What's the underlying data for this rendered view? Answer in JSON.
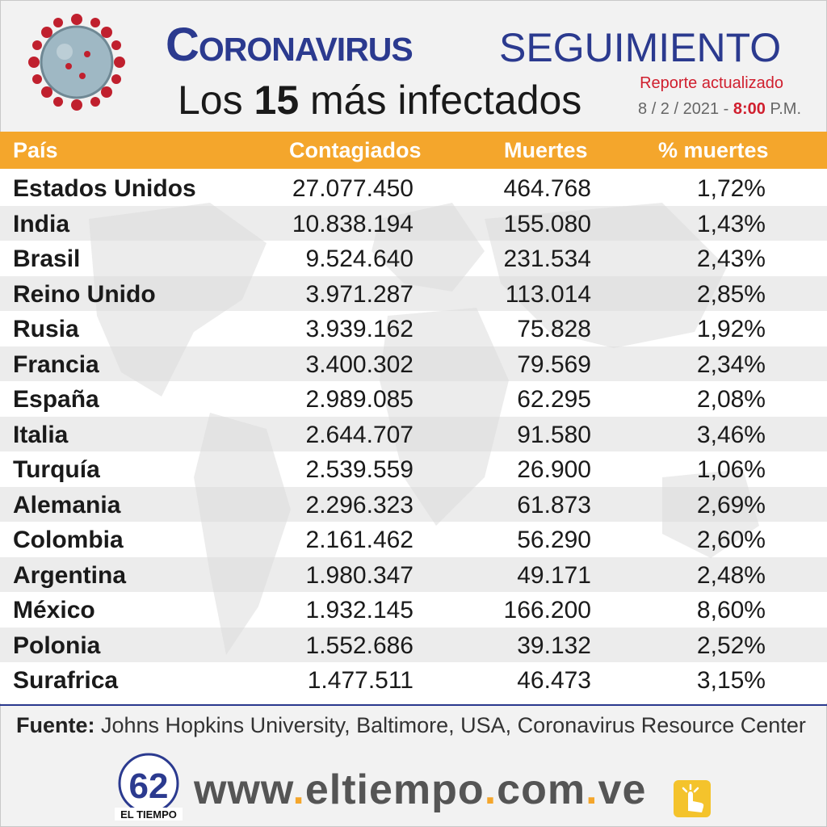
{
  "header": {
    "title_main": "Coronavirus",
    "title_sub": "SEGUIMIENTO",
    "subtitle_pre": "Los ",
    "subtitle_num": "15",
    "subtitle_post": " más infectados",
    "report_label": "Reporte actualizado",
    "report_date": "8 / 2 / 2021 - ",
    "report_time": "8:00",
    "report_ampm": " P.M."
  },
  "table": {
    "headers": [
      "País",
      "Contagiados",
      "Muertes",
      "% muertes"
    ],
    "rows": [
      {
        "pais": "Estados Unidos",
        "contagiados": "27.077.450",
        "muertes": "464.768",
        "pct": "1,72%"
      },
      {
        "pais": "India",
        "contagiados": "10.838.194",
        "muertes": "155.080",
        "pct": "1,43%"
      },
      {
        "pais": "Brasil",
        "contagiados": "9.524.640",
        "muertes": "231.534",
        "pct": "2,43%"
      },
      {
        "pais": "Reino Unido",
        "contagiados": "3.971.287",
        "muertes": "113.014",
        "pct": "2,85%"
      },
      {
        "pais": "Rusia",
        "contagiados": "3.939.162",
        "muertes": "75.828",
        "pct": "1,92%"
      },
      {
        "pais": "Francia",
        "contagiados": "3.400.302",
        "muertes": "79.569",
        "pct": "2,34%"
      },
      {
        "pais": "España",
        "contagiados": "2.989.085",
        "muertes": "62.295",
        "pct": "2,08%"
      },
      {
        "pais": "Italia",
        "contagiados": "2.644.707",
        "muertes": "91.580",
        "pct": "3,46%"
      },
      {
        "pais": "Turquía",
        "contagiados": "2.539.559",
        "muertes": "26.900",
        "pct": "1,06%"
      },
      {
        "pais": "Alemania",
        "contagiados": "2.296.323",
        "muertes": "61.873",
        "pct": "2,69%"
      },
      {
        "pais": "Colombia",
        "contagiados": "2.161.462",
        "muertes": "56.290",
        "pct": "2,60%"
      },
      {
        "pais": "Argentina",
        "contagiados": "1.980.347",
        "muertes": "49.171",
        "pct": "2,48%"
      },
      {
        "pais": "México",
        "contagiados": "1.932.145",
        "muertes": "166.200",
        "pct": "8,60%"
      },
      {
        "pais": "Polonia",
        "contagiados": "1.552.686",
        "muertes": "39.132",
        "pct": "2,52%"
      },
      {
        "pais": "Surafrica",
        "contagiados": "1.477.511",
        "muertes": "46.473",
        "pct": "3,15%"
      }
    ]
  },
  "footer": {
    "source_label": "Fuente:",
    "source_text": " Johns Hopkins University, Baltimore, USA, Coronavirus Resource Center",
    "logo_number": "62",
    "logo_text": "EL TIEMPO",
    "url_parts": [
      "www",
      ".",
      "eltiempo",
      ".",
      "com",
      ".",
      "ve"
    ]
  },
  "colors": {
    "brand_blue": "#2b3a8f",
    "header_orange": "#f4a62c",
    "accent_red": "#d01f2e"
  },
  "icons": [
    "coronavirus-icon",
    "world-map-background",
    "el-tiempo-logo",
    "hand-click-icon"
  ]
}
